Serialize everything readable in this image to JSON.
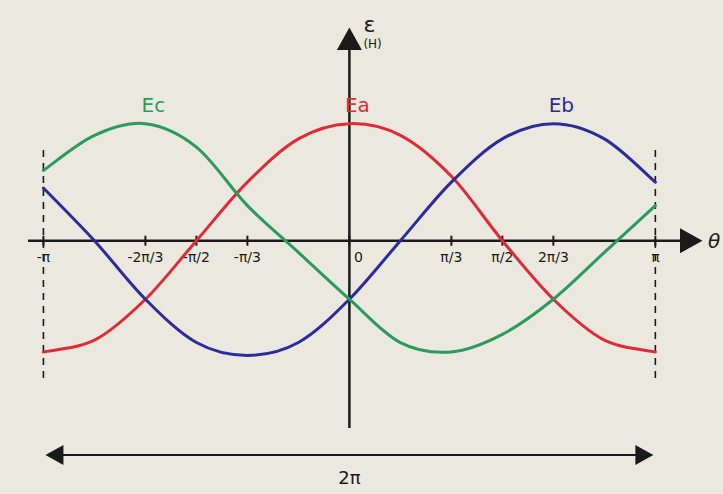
{
  "chart_data": {
    "type": "line",
    "x_label": "θ",
    "y_label": "ε (H)",
    "x": [
      -3.1416,
      -2.618,
      -2.0944,
      -1.5708,
      -1.0472,
      -0.5236,
      0,
      0.5236,
      1.0472,
      1.5708,
      2.0944,
      2.618,
      3.1416
    ],
    "xlim": [
      -3.3,
      3.6
    ],
    "ylim": [
      -1.6,
      1.8
    ],
    "xticks": [
      {
        "value": -3.1416,
        "label": "-π"
      },
      {
        "value": -2.0944,
        "label": "-2π/3"
      },
      {
        "value": -1.5708,
        "label": "-π/2"
      },
      {
        "value": -1.0472,
        "label": "-π/3"
      },
      0,
      {
        "value": 1.0472,
        "label": "π/3"
      },
      {
        "value": 1.5708,
        "label": "π/2"
      },
      {
        "value": 2.0944,
        "label": "2π/3"
      },
      {
        "value": 3.1416,
        "label": "π"
      }
    ],
    "tick_labels": "x",
    "grid": false,
    "series": [
      {
        "name": "Ea",
        "color": "#e02a35",
        "values": [
          -0.95,
          -0.85,
          -0.5,
          0,
          0.5,
          0.87,
          1.0,
          0.9,
          0.55,
          0,
          -0.5,
          -0.85,
          -0.95
        ]
      },
      {
        "name": "Eb",
        "color": "#2a2c9c",
        "values": [
          0.45,
          0,
          -0.5,
          -0.87,
          -0.98,
          -0.87,
          -0.5,
          0,
          0.5,
          0.87,
          1.0,
          0.87,
          0.5
        ]
      },
      {
        "name": "Ec",
        "color": "#2b9a5c",
        "values": [
          0.6,
          0.9,
          1.0,
          0.8,
          0.3,
          -0.1,
          -0.5,
          -0.87,
          -0.95,
          -0.8,
          -0.5,
          -0.1,
          0.3
        ]
      }
    ],
    "annotations": [
      {
        "text": "2π",
        "x": [
          -3.1416,
          3.1416
        ]
      }
    ]
  }
}
